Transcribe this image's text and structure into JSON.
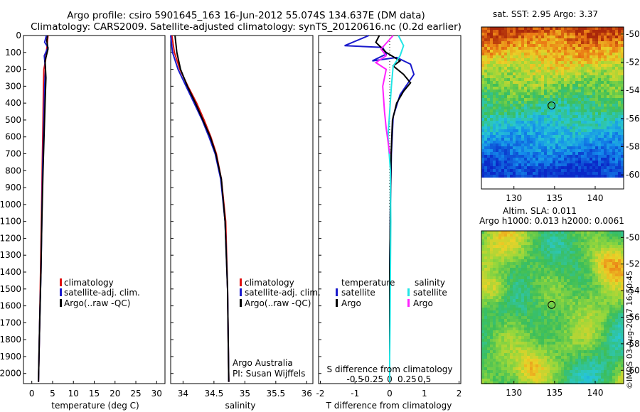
{
  "header": {
    "title1": "Argo profile: csiro 5901645_163 16-Jun-2012 55.074S 134.637E (DM data)",
    "title2": "Climatology: CARS2009. Satellite-adjusted climatology: synTS_20120616.nc (0.2d earlier)"
  },
  "footer": {
    "vertical_stamp": "©IMOS 03-Aug-2017 16:50:45"
  },
  "colors": {
    "climatology": "#e01010",
    "satellite": "#1a1acc",
    "argo": "#000000",
    "sal_satellite": "#22e6e6",
    "sal_argo": "#ff22ff"
  },
  "chart_data": [
    {
      "type": "line",
      "id": "temp",
      "title": "",
      "xlabel": "temperature (deg C)",
      "ylabel": "",
      "xlim": [
        -2,
        32
      ],
      "ylim": [
        2060,
        0
      ],
      "xticks": [
        "0",
        "5",
        "10",
        "15",
        "20",
        "25",
        "30"
      ],
      "xtick_values": [
        0,
        5,
        10,
        15,
        20,
        25,
        30
      ],
      "yticks": [
        "0",
        "100",
        "200",
        "300",
        "400",
        "500",
        "600",
        "700",
        "800",
        "900",
        "1000",
        "1100",
        "1200",
        "1300",
        "1400",
        "1500",
        "1600",
        "1700",
        "1800",
        "1900",
        "2000"
      ],
      "ytick_values": [
        0,
        100,
        200,
        300,
        400,
        500,
        600,
        700,
        800,
        900,
        1000,
        1100,
        1200,
        1300,
        1400,
        1500,
        1600,
        1700,
        1800,
        1900,
        2000
      ],
      "legend": [
        "climatology",
        "satellite-adj. clim.",
        "Argo(..raw -QC)"
      ],
      "series": [
        {
          "name": "climatology",
          "x": [
            3.9,
            3.7,
            3.5,
            3.3,
            2.9,
            2.8,
            2.7,
            2.5,
            2.3,
            2.1,
            1.9,
            1.6
          ],
          "y": [
            0,
            50,
            100,
            150,
            200,
            300,
            500,
            800,
            1100,
            1400,
            1700,
            2050
          ]
        },
        {
          "name": "satellite-adj. clim.",
          "x": [
            3.5,
            3.1,
            3.9,
            3.0,
            3.3,
            3.1,
            2.9,
            2.6,
            2.4,
            2.2,
            1.9,
            1.6
          ],
          "y": [
            0,
            40,
            70,
            120,
            200,
            300,
            500,
            800,
            1100,
            1400,
            1700,
            2050
          ]
        },
        {
          "name": "Argo(..raw -QC)",
          "x": [
            3.8,
            3.6,
            3.9,
            3.2,
            3.4,
            3.2,
            3.0,
            2.7,
            2.4,
            2.2,
            1.9,
            1.6
          ],
          "y": [
            0,
            30,
            80,
            150,
            250,
            400,
            550,
            800,
            1100,
            1400,
            1700,
            2050
          ]
        }
      ]
    },
    {
      "type": "line",
      "id": "sal",
      "title": "",
      "xlabel": "salinity",
      "xlim": [
        33.8,
        36.1
      ],
      "ylim": [
        2060,
        0
      ],
      "xticks": [
        "34",
        "34.5",
        "35",
        "35.5",
        "36"
      ],
      "xtick_values": [
        34,
        34.5,
        35,
        35.5,
        36
      ],
      "legend": [
        "climatology",
        "satellite-adj. clim.",
        "Argo(..raw -QC)"
      ],
      "annotation": [
        "Argo Australia",
        "PI: Susan Wijffels"
      ],
      "series": [
        {
          "name": "climatology",
          "x": [
            33.82,
            33.86,
            33.95,
            34.08,
            34.22,
            34.34,
            34.45,
            34.54,
            34.62,
            34.69,
            34.72,
            34.74
          ],
          "y": [
            0,
            100,
            200,
            300,
            400,
            500,
            600,
            700,
            850,
            1100,
            1500,
            2050
          ]
        },
        {
          "name": "satellite-adj. clim.",
          "x": [
            33.8,
            33.83,
            33.92,
            34.05,
            34.18,
            34.31,
            34.42,
            34.52,
            34.61,
            34.68,
            34.72,
            34.74
          ],
          "y": [
            0,
            100,
            200,
            300,
            400,
            500,
            600,
            700,
            850,
            1100,
            1500,
            2050
          ]
        },
        {
          "name": "Argo(..raw -QC)",
          "x": [
            33.87,
            33.9,
            33.96,
            34.07,
            34.2,
            34.32,
            34.44,
            34.53,
            34.62,
            34.68,
            34.72,
            34.74
          ],
          "y": [
            0,
            100,
            200,
            300,
            400,
            500,
            600,
            700,
            850,
            1100,
            1500,
            2050
          ]
        }
      ]
    },
    {
      "type": "line",
      "id": "diff",
      "xlabel": "T difference from climatology",
      "sublabel": "S difference from climatology",
      "xlim": [
        -2.05,
        2.05
      ],
      "ylim": [
        2060,
        0
      ],
      "xticks": [
        "-2",
        "-1",
        "0",
        "1",
        "2"
      ],
      "xtick_values": [
        -2,
        -1,
        0,
        1,
        2
      ],
      "sticks": [
        "-0.5",
        "-0.25",
        "0",
        "0.25",
        "0.5"
      ],
      "stick_values": [
        -1,
        -0.5,
        0,
        0.5,
        1
      ],
      "legend_left_title": "temperature",
      "legend_right_title": "salinity",
      "legend_left": [
        "satellite",
        "Argo"
      ],
      "legend_right": [
        "satellite",
        "Argo"
      ],
      "series": [
        {
          "name": "temperature satellite",
          "x": [
            -0.6,
            -1.3,
            -0.2,
            -0.1,
            -0.5,
            0.2,
            0.6,
            0.7,
            0.3,
            0.1,
            0.05,
            0.02,
            0.0,
            0.0,
            0.0
          ],
          "y": [
            0,
            60,
            70,
            110,
            150,
            130,
            170,
            230,
            350,
            480,
            700,
            1000,
            1400,
            1800,
            2050
          ]
        },
        {
          "name": "temperature Argo",
          "x": [
            -0.3,
            -0.4,
            -0.1,
            0.3,
            0.1,
            0.4,
            0.6,
            0.4,
            0.2,
            0.08,
            0.04,
            0.02,
            0.0,
            0.0,
            0.0
          ],
          "y": [
            0,
            40,
            100,
            150,
            180,
            230,
            280,
            330,
            400,
            500,
            700,
            1000,
            1400,
            1800,
            2050
          ]
        },
        {
          "name": "salinity satellite",
          "x": [
            0.25,
            0.4,
            0.3,
            0.1,
            0.05,
            0.0,
            -0.05,
            0.02,
            0.03,
            0.02,
            0.01,
            0.0,
            0.0
          ],
          "y": [
            0,
            60,
            120,
            180,
            300,
            450,
            600,
            800,
            1100,
            1400,
            1700,
            1900,
            2050
          ]
        },
        {
          "name": "salinity Argo",
          "x": [
            0.1,
            -0.25,
            -0.1,
            -0.4,
            -0.1,
            -0.2,
            -0.15,
            -0.1,
            0.0
          ],
          "y": [
            0,
            80,
            120,
            160,
            200,
            300,
            450,
            550,
            700
          ]
        }
      ]
    },
    {
      "type": "heatmap",
      "id": "sst_map",
      "title": "sat. SST: 2.95 Argo: 3.37",
      "xticks": [
        "130",
        "135",
        "140"
      ],
      "yticks": [
        "-50",
        "-52",
        "-54",
        "-56",
        "-58",
        "-60"
      ],
      "xlim": [
        126,
        143.5
      ],
      "ylim": [
        -61,
        -49.5
      ],
      "marker": [
        134.637,
        -55.074
      ]
    },
    {
      "type": "heatmap",
      "id": "sla_map",
      "title": "Altim. SLA: 0.011",
      "subtitle": "Argo h1000: 0.013 h2000: 0.0061",
      "xticks": [
        "130",
        "135",
        "140"
      ],
      "yticks": [
        "-50",
        "-52",
        "-54",
        "-56",
        "-58",
        "-60"
      ],
      "xlim": [
        126,
        143.5
      ],
      "ylim": [
        -61,
        -49.5
      ],
      "marker": [
        134.637,
        -55.074
      ]
    }
  ]
}
